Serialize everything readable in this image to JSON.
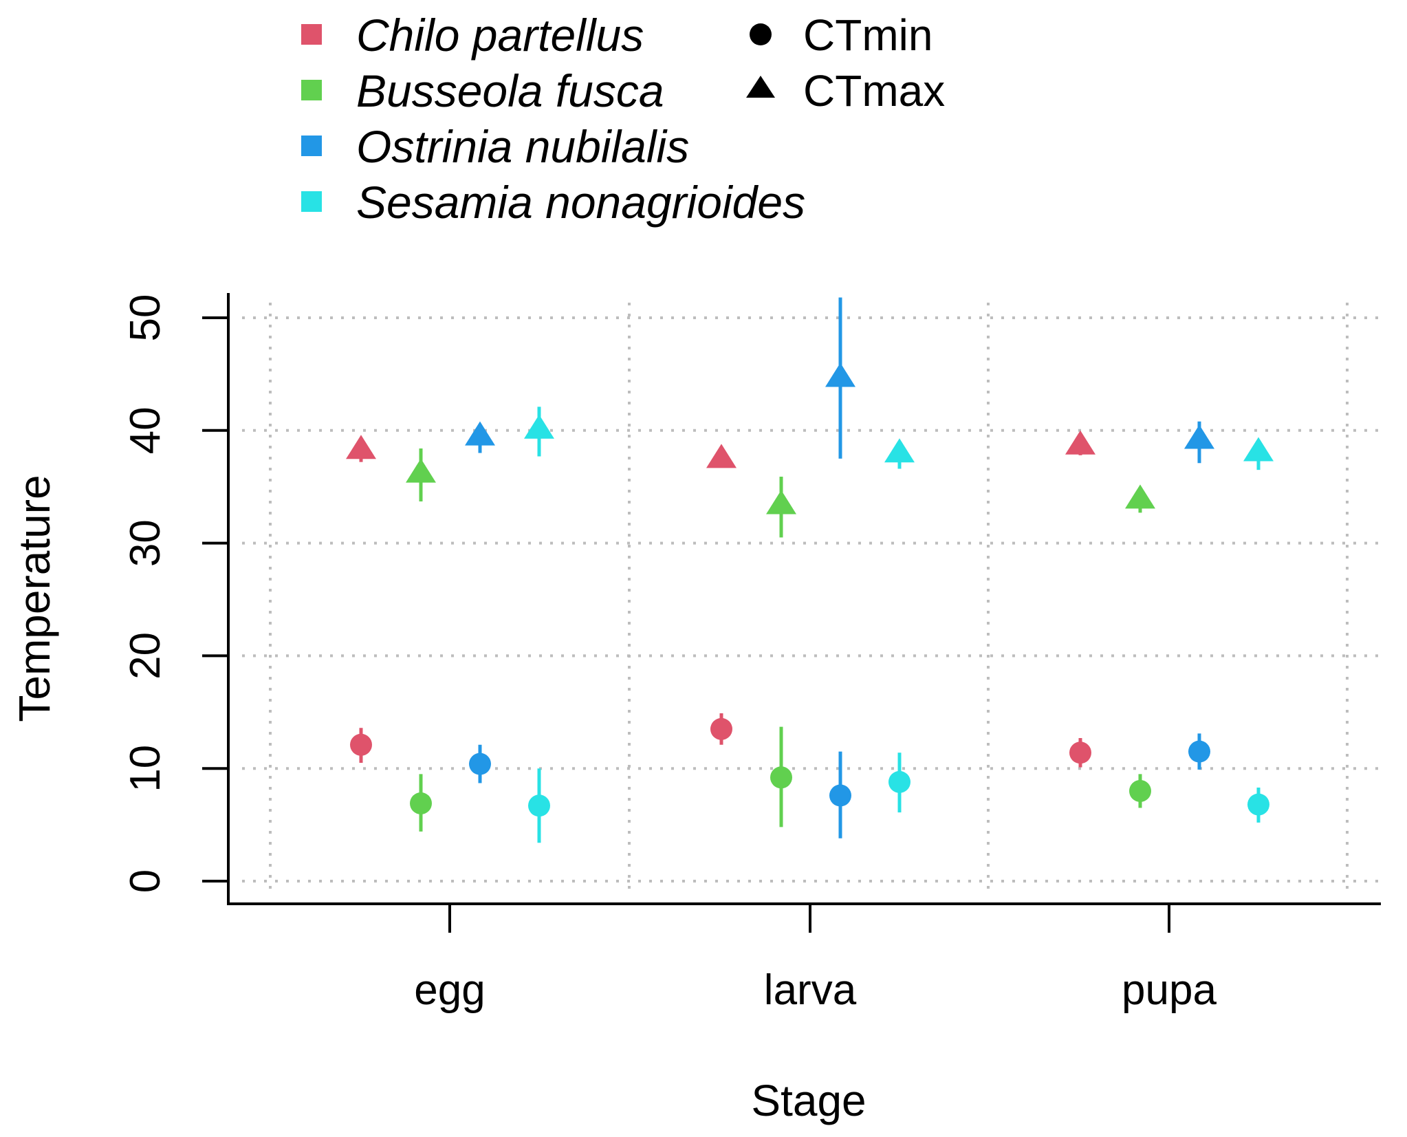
{
  "chart_data": {
    "type": "scatter",
    "title": "",
    "xlabel": "Stage",
    "ylabel": "Temperature",
    "categories": [
      "egg",
      "larva",
      "pupa"
    ],
    "ylim": [
      0,
      50
    ],
    "yticks": [
      "0",
      "10",
      "20",
      "30",
      "40",
      "50"
    ],
    "grid": true,
    "legend_position": "top-left",
    "species": [
      {
        "name": "Chilo partellus",
        "color": "#DF536B"
      },
      {
        "name": "Busseola fusca",
        "color": "#61D04F"
      },
      {
        "name": "Ostrinia nubilalis",
        "color": "#2297E6"
      },
      {
        "name": "Sesamia nonagrioides",
        "color": "#28E2E5"
      }
    ],
    "measures": [
      {
        "name": "CTmin",
        "shape": "circle"
      },
      {
        "name": "CTmax",
        "shape": "triangle"
      }
    ],
    "series": [
      {
        "species": "Chilo partellus",
        "measure": "CTmax",
        "values": [
          38.2,
          37.4,
          38.6
        ],
        "lower": [
          37.2,
          36.8,
          37.8
        ],
        "upper": [
          38.8,
          38.0,
          39.2
        ]
      },
      {
        "species": "Chilo partellus",
        "measure": "CTmin",
        "values": [
          12.1,
          13.5,
          11.4
        ],
        "lower": [
          10.5,
          12.1,
          10.1
        ],
        "upper": [
          13.6,
          14.9,
          12.7
        ]
      },
      {
        "species": "Busseola fusca",
        "measure": "CTmax",
        "values": [
          36.1,
          33.3,
          33.8
        ],
        "lower": [
          33.7,
          30.5,
          32.7
        ],
        "upper": [
          38.4,
          35.9,
          34.6
        ]
      },
      {
        "species": "Busseola fusca",
        "measure": "CTmin",
        "values": [
          6.9,
          9.2,
          8.0
        ],
        "lower": [
          4.4,
          4.8,
          6.5
        ],
        "upper": [
          9.5,
          13.7,
          9.5
        ]
      },
      {
        "species": "Ostrinia nubilalis",
        "measure": "CTmax",
        "values": [
          39.4,
          44.6,
          39.1
        ],
        "lower": [
          38.0,
          37.5,
          37.1
        ],
        "upper": [
          40.3,
          51.8,
          40.8
        ]
      },
      {
        "species": "Ostrinia nubilalis",
        "measure": "CTmin",
        "values": [
          10.4,
          7.6,
          11.5
        ],
        "lower": [
          8.7,
          3.8,
          9.9
        ],
        "upper": [
          12.1,
          11.5,
          13.1
        ]
      },
      {
        "species": "Sesamia nonagrioides",
        "measure": "CTmax",
        "values": [
          40.0,
          37.9,
          38.0
        ],
        "lower": [
          37.7,
          36.6,
          36.5
        ],
        "upper": [
          42.1,
          38.9,
          39.0
        ]
      },
      {
        "species": "Sesamia nonagrioides",
        "measure": "CTmin",
        "values": [
          6.7,
          8.8,
          6.8
        ],
        "lower": [
          3.4,
          6.1,
          5.2
        ],
        "upper": [
          10.0,
          11.4,
          8.3
        ]
      }
    ]
  }
}
